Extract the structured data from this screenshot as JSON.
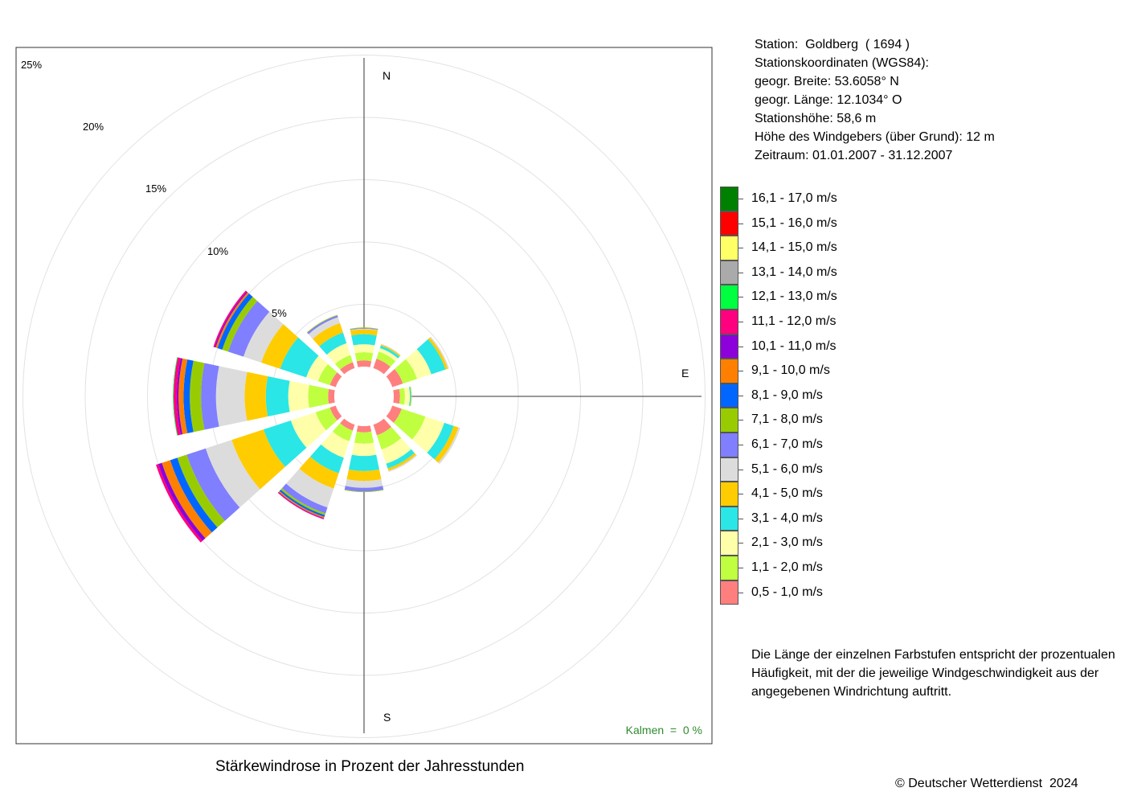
{
  "station_info": {
    "station": "Station:  Goldberg  ( 1694 )",
    "coords_header": "Stationskoordinaten (WGS84):",
    "latitude": "geogr. Breite: 53.6058° N",
    "longitude": "geogr. Länge: 12.1034° O",
    "elevation": "Stationshöhe: 58,6 m",
    "sensor_height": "Höhe des Windgebers (über Grund): 12 m",
    "period": "Zeitraum: 01.01.2007 - 31.12.2007"
  },
  "note": "Die Länge der einzelnen Farbstufen entspricht der prozentualen Häufigkeit, mit der die jeweilige Windgeschwindigkeit aus der angegebenen Windrichtung auftritt.",
  "caption": "Stärkewindrose in Prozent der Jahresstunden",
  "copyright": "© Deutscher Wetterdienst  2024",
  "chart_data": {
    "type": "wind-rose",
    "title": "Stärkewindrose in Prozent der Jahresstunden",
    "compass_labels": [
      "N",
      "E",
      "S"
    ],
    "ring_labels": [
      "5%",
      "10%",
      "15%",
      "20%",
      "25%"
    ],
    "rings": [
      5,
      10,
      15,
      20,
      25
    ],
    "calms": "Kalmen  =  0 %",
    "direction_unit": "degrees",
    "directions": [
      0,
      30,
      60,
      90,
      120,
      150,
      180,
      210,
      240,
      270,
      300,
      330
    ],
    "speed_classes": [
      {
        "label": "0,5 - 1,0 m/s",
        "color": "#ff7f7f"
      },
      {
        "label": "1,1 - 2,0 m/s",
        "color": "#bfff3f"
      },
      {
        "label": "2,1 - 3,0 m/s",
        "color": "#ffffaa"
      },
      {
        "label": "3,1 - 4,0 m/s",
        "color": "#2ae6e6"
      },
      {
        "label": "4,1 - 5,0 m/s",
        "color": "#ffcc00"
      },
      {
        "label": "5,1 - 6,0 m/s",
        "color": "#dcdcdc"
      },
      {
        "label": "6,1 - 7,0 m/s",
        "color": "#7f7fff"
      },
      {
        "label": "7,1 - 8,0 m/s",
        "color": "#99cc00"
      },
      {
        "label": "8,1 - 9,0 m/s",
        "color": "#0066ff"
      },
      {
        "label": "9,1 - 10,0 m/s",
        "color": "#ff8000"
      },
      {
        "label": "10,1 - 11,0 m/s",
        "color": "#8c00d9"
      },
      {
        "label": "11,1 - 12,0 m/s",
        "color": "#ff007f"
      },
      {
        "label": "12,1 - 13,0 m/s",
        "color": "#00ff40"
      },
      {
        "label": "13,1 - 14,0 m/s",
        "color": "#aaaaaa"
      },
      {
        "label": "14,1 - 15,0 m/s",
        "color": "#ffff66"
      },
      {
        "label": "15,1 - 16,0 m/s",
        "color": "#ff0000"
      },
      {
        "label": "16,1 - 17,0 m/s",
        "color": "#008000"
      }
    ],
    "series": [
      {
        "values": [
          0.5,
          0.65,
          0.65,
          0.8,
          0.4,
          0.05,
          0.05,
          0.05,
          0.0,
          0.0,
          0.0,
          0.0,
          0.0,
          0.0,
          0.0,
          0.0,
          0.0
        ]
      },
      {
        "values": [
          0.8,
          0.6,
          0.3,
          0.2,
          0.1,
          0.05,
          0.0,
          0.0,
          0.0,
          0.0,
          0.0,
          0.0,
          0.0,
          0.0,
          0.0,
          0.0,
          0.0
        ]
      },
      {
        "values": [
          0.9,
          1.2,
          1.2,
          1.2,
          0.2,
          0.1,
          0.0,
          0.0,
          0.0,
          0.0,
          0.0,
          0.0,
          0.0,
          0.0,
          0.0,
          0.0,
          0.0
        ]
      },
      {
        "values": [
          0.5,
          0.4,
          0.4,
          0.1,
          0.05,
          0.0,
          0.0,
          0.0,
          0.0,
          0.0,
          0.0,
          0.0,
          0.0,
          0.0,
          0.0,
          0.0,
          0.0
        ]
      },
      {
        "values": [
          0.8,
          2.0,
          1.6,
          0.8,
          0.4,
          0.15,
          0.0,
          0.0,
          0.0,
          0.0,
          0.0,
          0.0,
          0.0,
          0.0,
          0.0,
          0.0,
          0.0
        ]
      },
      {
        "values": [
          0.9,
          1.2,
          1.2,
          0.4,
          0.2,
          0.1,
          0.0,
          0.0,
          0.0,
          0.0,
          0.0,
          0.0,
          0.0,
          0.0,
          0.0,
          0.0,
          0.0
        ]
      },
      {
        "values": [
          0.5,
          0.9,
          1.0,
          1.2,
          0.8,
          0.55,
          0.3,
          0.05,
          0.0,
          0.0,
          0.0,
          0.0,
          0.0,
          0.0,
          0.0,
          0.0,
          0.0
        ]
      },
      {
        "values": [
          0.5,
          0.9,
          1.4,
          1.3,
          1.3,
          1.6,
          0.5,
          0.15,
          0.15,
          0.1,
          0.05,
          0.05,
          0.0,
          0.0,
          0.0,
          0.0,
          0.0
        ]
      },
      {
        "values": [
          0.5,
          1.2,
          2.1,
          2.3,
          2.7,
          2.2,
          1.6,
          0.8,
          0.6,
          0.7,
          0.3,
          0.2,
          0.0,
          0.0,
          0.0,
          0.0,
          0.0
        ]
      },
      {
        "values": [
          0.5,
          1.6,
          1.6,
          1.8,
          1.7,
          2.3,
          1.2,
          0.9,
          0.5,
          0.4,
          0.15,
          0.25,
          0.05,
          0.0,
          0.0,
          0.0,
          0.0
        ]
      },
      {
        "values": [
          0.5,
          1.0,
          1.0,
          2.2,
          1.6,
          1.5,
          1.3,
          0.5,
          0.4,
          0.15,
          0.1,
          0.1,
          0.0,
          0.0,
          0.0,
          0.0,
          0.0
        ]
      },
      {
        "values": [
          0.5,
          0.6,
          1.0,
          0.9,
          0.8,
          0.5,
          0.15,
          0.05,
          0.0,
          0.0,
          0.0,
          0.0,
          0.0,
          0.0,
          0.0,
          0.0,
          0.0
        ]
      }
    ]
  }
}
